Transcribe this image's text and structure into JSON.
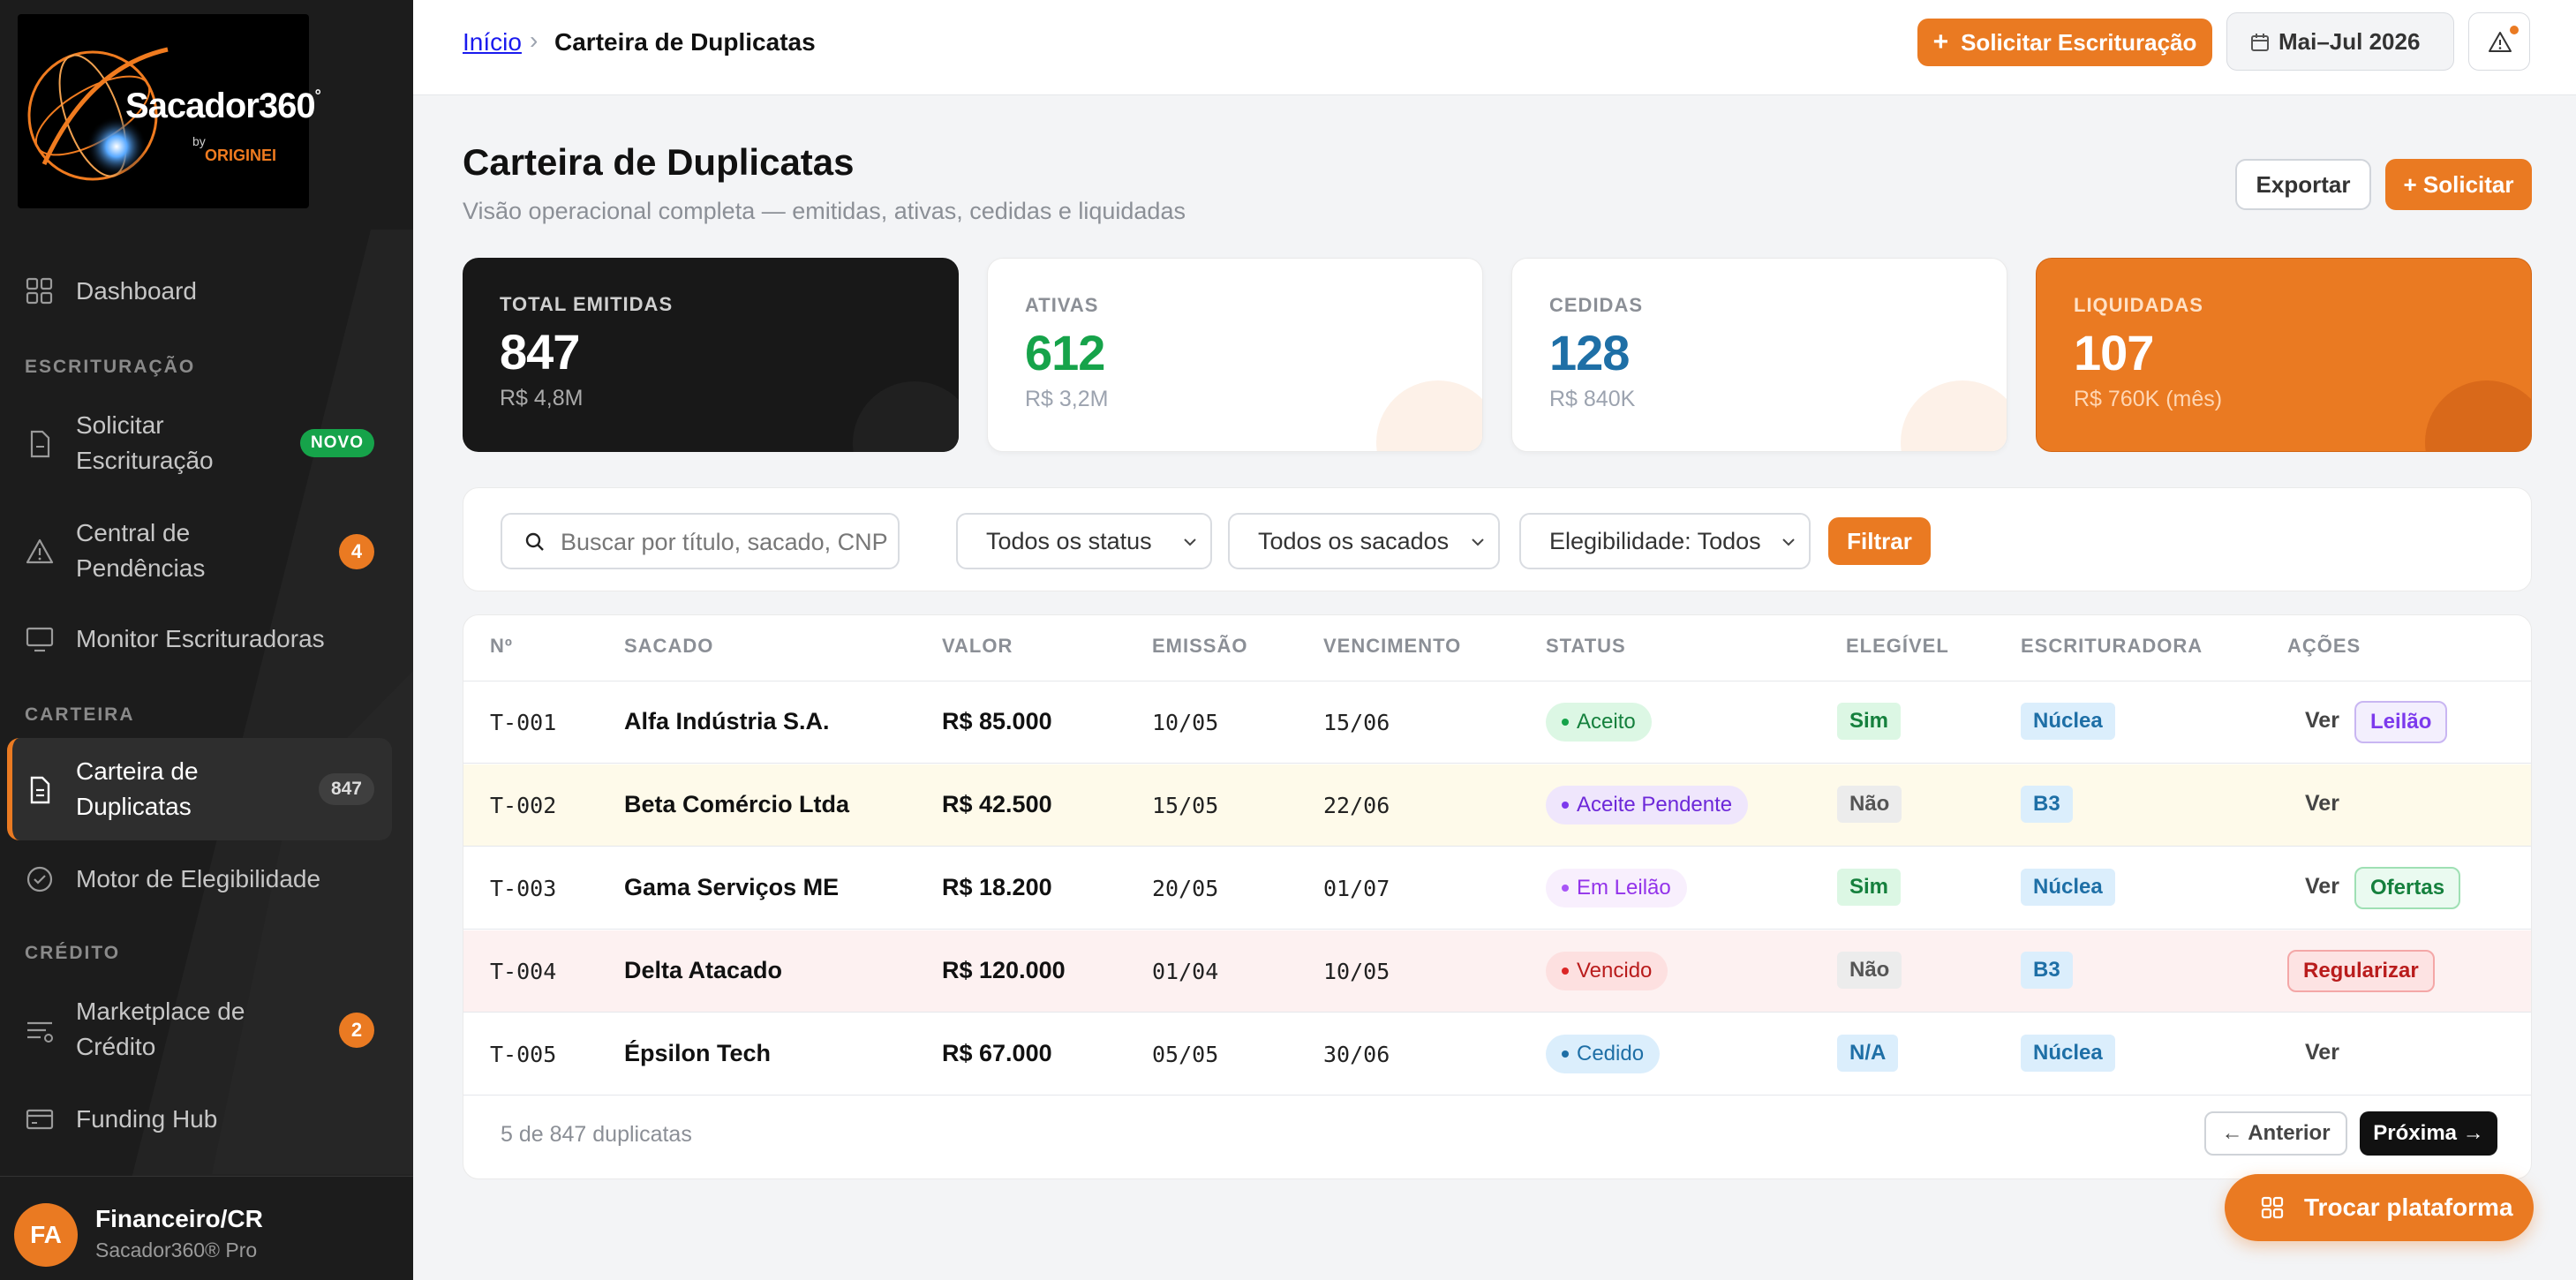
{
  "brand": {
    "logo_main": "Sacador",
    "logo_num": "360",
    "logo_reg": "°",
    "logo_by": "by",
    "logo_org": "ORIGINEI"
  },
  "sidebar": {
    "dashboard": "Dashboard",
    "section_escrituracao": "ESCRITURAÇÃO",
    "solicitar_l1": "Solicitar",
    "solicitar_l2": "Escrituração",
    "solicitar_badge": "NOVO",
    "pendencias_l1": "Central de",
    "pendencias_l2": "Pendências",
    "pendencias_badge": "4",
    "monitor": "Monitor Escrituradoras",
    "section_carteira": "CARTEIRA",
    "carteira_l1": "Carteira de",
    "carteira_l2": "Duplicatas",
    "carteira_badge": "847",
    "motor": "Motor de Elegibilidade",
    "section_credito": "CRÉDITO",
    "marketplace_l1": "Marketplace de",
    "marketplace_l2": "Crédito",
    "marketplace_badge": "2",
    "funding": "Funding Hub",
    "user_initials": "FA",
    "user_name": "Financeiro/CR",
    "user_plan": "Sacador360® Pro"
  },
  "topbar": {
    "crumb_home": "Início",
    "crumb_sep": "›",
    "crumb_current": "Carteira de Duplicatas",
    "solicitar_btn": "Solicitar Escrituração",
    "date_range": "Mai–Jul 2026"
  },
  "page": {
    "title": "Carteira de Duplicatas",
    "subtitle": "Visão operacional completa — emitidas, ativas, cedidas e liquidadas",
    "export_btn": "Exportar",
    "solicitar_btn": "+ Solicitar"
  },
  "stats": [
    {
      "label": "TOTAL EMITIDAS",
      "value": "847",
      "sub": "R$ 4,8M"
    },
    {
      "label": "ATIVAS",
      "value": "612",
      "sub": "R$ 3,2M"
    },
    {
      "label": "CEDIDAS",
      "value": "128",
      "sub": "R$ 840K"
    },
    {
      "label": "LIQUIDADAS",
      "value": "107",
      "sub": "R$ 760K (mês)"
    }
  ],
  "filters": {
    "search_placeholder": "Buscar por título, sacado, CNPJ...",
    "status": "Todos os status",
    "sacados": "Todos os sacados",
    "elegibilidade": "Elegibilidade: Todos",
    "filtrar": "Filtrar"
  },
  "table": {
    "headers": [
      "Nº",
      "SACADO",
      "VALOR",
      "EMISSÃO",
      "VENCIMENTO",
      "STATUS",
      "ELEGÍVEL",
      "ESCRITURADORA",
      "AÇÕES"
    ],
    "rows": [
      {
        "n": "T-001",
        "sacado": "Alfa Indústria S.A.",
        "valor": "R$ 85.000",
        "emissao": "10/05",
        "vencimento": "15/06",
        "status": "Aceito",
        "elegivel": "Sim",
        "escrituradora": "Núclea",
        "ver": "Ver",
        "acao": "Leilão"
      },
      {
        "n": "T-002",
        "sacado": "Beta Comércio Ltda",
        "valor": "R$ 42.500",
        "emissao": "15/05",
        "vencimento": "22/06",
        "status": "Aceite Pendente",
        "elegivel": "Não",
        "escrituradora": "B3",
        "ver": "Ver",
        "acao": ""
      },
      {
        "n": "T-003",
        "sacado": "Gama Serviços ME",
        "valor": "R$ 18.200",
        "emissao": "20/05",
        "vencimento": "01/07",
        "status": "Em Leilão",
        "elegivel": "Sim",
        "escrituradora": "Núclea",
        "ver": "Ver",
        "acao": "Ofertas"
      },
      {
        "n": "T-004",
        "sacado": "Delta Atacado",
        "valor": "R$ 120.000",
        "emissao": "01/04",
        "vencimento": "10/05",
        "status": "Vencido",
        "elegivel": "Não",
        "escrituradora": "B3",
        "ver": "",
        "acao": "Regularizar"
      },
      {
        "n": "T-005",
        "sacado": "Épsilon Tech",
        "valor": "R$ 67.000",
        "emissao": "05/05",
        "vencimento": "30/06",
        "status": "Cedido",
        "elegivel": "N/A",
        "escrituradora": "Núclea",
        "ver": "Ver",
        "acao": ""
      }
    ],
    "footer_count": "5 de 847 duplicatas",
    "prev": "← Anterior",
    "next": "Próxima →"
  },
  "fab": "Trocar plataforma",
  "colors": {
    "accent": "#ea7a22",
    "green": "#16a34a",
    "blue": "#1e6fa6",
    "purple": "#7c3aed",
    "red": "#dc2626"
  }
}
